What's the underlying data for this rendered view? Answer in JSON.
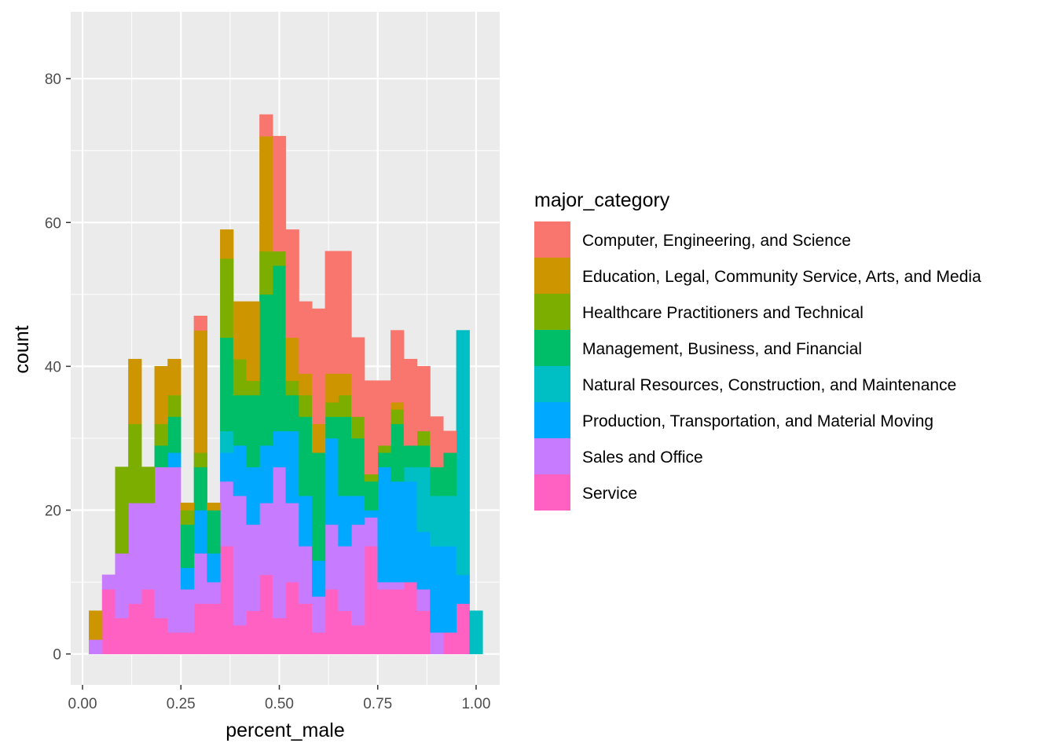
{
  "chart_data": {
    "type": "bar",
    "subtype": "stacked-histogram",
    "title": "",
    "xlabel": "percent_male",
    "ylabel": "count",
    "xlim": [
      -0.03,
      1.06
    ],
    "ylim": [
      -4.3,
      89.3
    ],
    "x_ticks": [
      0.0,
      0.25,
      0.5,
      0.75,
      1.0
    ],
    "x_tick_labels": [
      "0.00",
      "0.25",
      "0.50",
      "0.75",
      "1.00"
    ],
    "y_ticks": [
      0,
      20,
      40,
      60,
      80
    ],
    "y_tick_labels": [
      "0",
      "20",
      "40",
      "60",
      "80"
    ],
    "grid": true,
    "legend_position": "right",
    "legend_title": "major_category",
    "bins": {
      "start": 0.0167,
      "width": 0.0333,
      "centers": [
        0.0333,
        0.0667,
        0.1,
        0.1333,
        0.1667,
        0.2,
        0.2333,
        0.2667,
        0.3,
        0.3333,
        0.3667,
        0.4,
        0.4333,
        0.4667,
        0.5,
        0.5333,
        0.5667,
        0.6,
        0.6333,
        0.6667,
        0.7,
        0.7333,
        0.7667,
        0.8,
        0.8333,
        0.8667,
        0.9,
        0.9333,
        0.9667,
        1.0
      ]
    },
    "series": [
      {
        "name": "Service",
        "color": "#FF61C3",
        "values": [
          0,
          9,
          5,
          7,
          9,
          5,
          3,
          3,
          7,
          7,
          15,
          4,
          6,
          11,
          5,
          10,
          7,
          3,
          9,
          6,
          4,
          15,
          9,
          9,
          10,
          6,
          0,
          3,
          7,
          0
        ]
      },
      {
        "name": "Sales and Office",
        "color": "#C77CFF",
        "values": [
          2,
          2,
          9,
          14,
          12,
          21,
          23,
          6,
          7,
          3,
          9,
          18,
          12,
          10,
          21,
          11,
          8,
          5,
          9,
          9,
          14,
          4,
          1,
          1,
          0,
          3,
          3,
          0,
          0,
          0
        ]
      },
      {
        "name": "Production, Transportation, and Material Moving",
        "color": "#00A9FF",
        "values": [
          0,
          0,
          0,
          0,
          0,
          0,
          2,
          3,
          6,
          4,
          4,
          7,
          8,
          8,
          5,
          10,
          7,
          5,
          12,
          7,
          4,
          1,
          16,
          14,
          14,
          8,
          12,
          12,
          4,
          0
        ]
      },
      {
        "name": "Natural Resources, Construction, and Maintenance",
        "color": "#00BFC4",
        "values": [
          0,
          0,
          0,
          0,
          0,
          0,
          0,
          0,
          0,
          0,
          3,
          0,
          0,
          0,
          0,
          0,
          0,
          0,
          0,
          0,
          0,
          0,
          0,
          0,
          2,
          9,
          7,
          7,
          34,
          6
        ]
      },
      {
        "name": "Management, Business, and Financial",
        "color": "#00BE67",
        "values": [
          0,
          0,
          0,
          0,
          0,
          3,
          5,
          6,
          6,
          6,
          13,
          7,
          10,
          21,
          23,
          5,
          11,
          15,
          3,
          11,
          8,
          4,
          2,
          8,
          3,
          3,
          4,
          6,
          0,
          0
        ]
      },
      {
        "name": "Healthcare Practitioners and Technical",
        "color": "#7CAE00",
        "values": [
          0,
          0,
          12,
          11,
          5,
          3,
          3,
          2,
          2,
          0,
          11,
          5,
          2,
          6,
          2,
          2,
          3,
          0,
          2,
          3,
          3,
          1,
          1,
          2,
          0,
          2,
          0,
          0,
          0,
          0
        ]
      },
      {
        "name": "Education, Legal, Community Service, Arts, and Media",
        "color": "#CD9600",
        "values": [
          4,
          0,
          0,
          9,
          0,
          8,
          5,
          1,
          17,
          1,
          4,
          8,
          11,
          16,
          0,
          6,
          3,
          4,
          4,
          3,
          0,
          0,
          0,
          1,
          0,
          0,
          0,
          0,
          0,
          0
        ]
      },
      {
        "name": "Computer, Engineering, and Science",
        "color": "#F8766D",
        "values": [
          0,
          0,
          0,
          0,
          0,
          0,
          0,
          0,
          2,
          0,
          0,
          0,
          0,
          3,
          16,
          15,
          10,
          16,
          17,
          17,
          11,
          13,
          9,
          10,
          12,
          9,
          7,
          3,
          0,
          0
        ]
      }
    ],
    "legend_entries": [
      {
        "label": "Computer, Engineering, and Science",
        "color": "#F8766D"
      },
      {
        "label": "Education, Legal, Community Service, Arts, and Media",
        "color": "#CD9600"
      },
      {
        "label": "Healthcare Practitioners and Technical",
        "color": "#7CAE00"
      },
      {
        "label": "Management, Business, and Financial",
        "color": "#00BE67"
      },
      {
        "label": "Natural Resources, Construction, and Maintenance",
        "color": "#00BFC4"
      },
      {
        "label": "Production, Transportation, and Material Moving",
        "color": "#00A9FF"
      },
      {
        "label": "Sales and Office",
        "color": "#C77CFF"
      },
      {
        "label": "Service",
        "color": "#FF61C3"
      }
    ],
    "panel_background": "#EBEBEB",
    "grid_color": "#FFFFFF"
  }
}
